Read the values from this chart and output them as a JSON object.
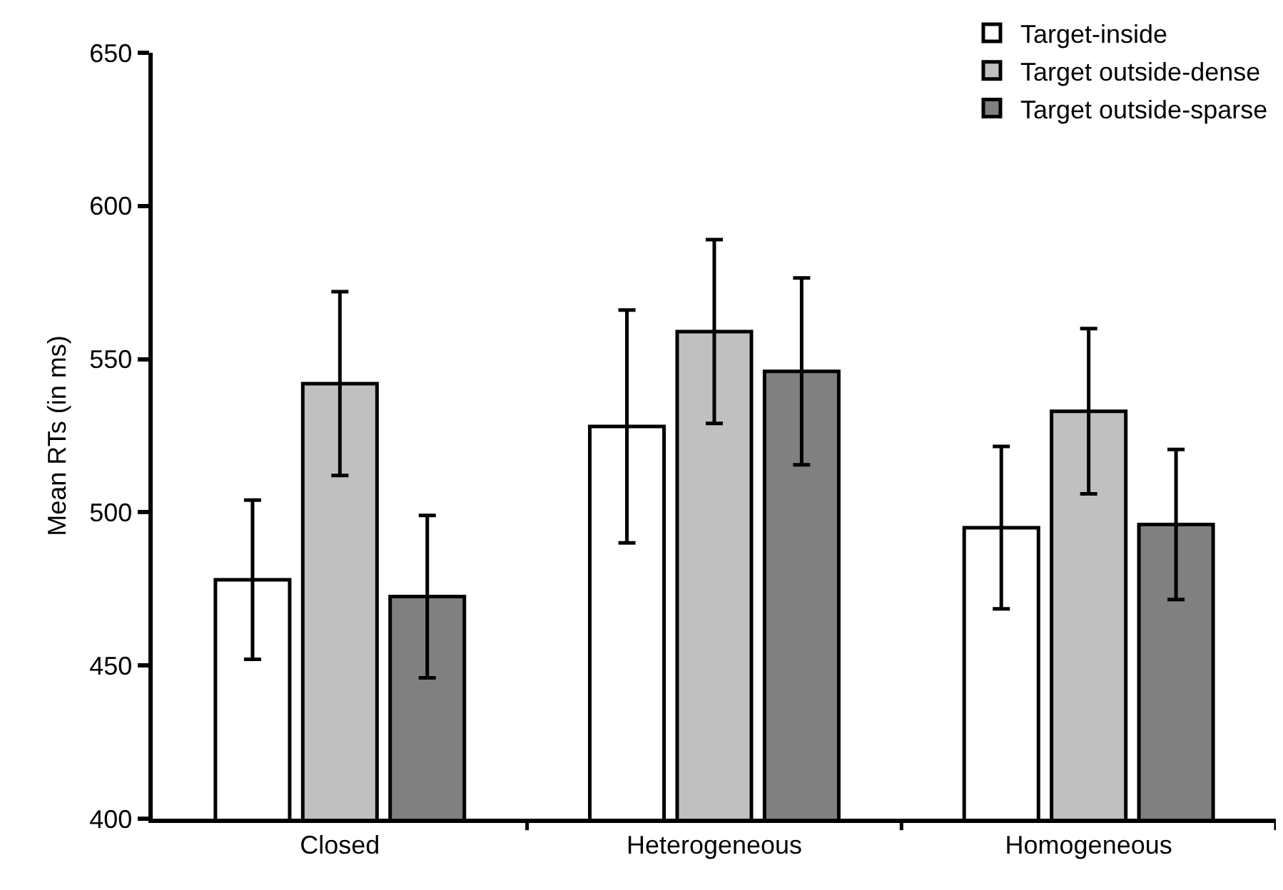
{
  "chart_data": {
    "type": "bar",
    "ylabel": "Mean RTs (in ms)",
    "categories": [
      "Closed",
      "Heterogeneous",
      "Homogeneous"
    ],
    "series": [
      {
        "name": "Target-inside",
        "color": "#ffffff",
        "values": [
          478,
          528,
          495
        ],
        "errors": [
          26,
          38,
          26.5
        ]
      },
      {
        "name": "Target outside-dense",
        "color": "#c0c0c0",
        "values": [
          542,
          559,
          533
        ],
        "errors": [
          30,
          30,
          27
        ]
      },
      {
        "name": "Target outside-sparse",
        "color": "#808080",
        "values": [
          472.5,
          546,
          496
        ],
        "errors": [
          26.5,
          30.5,
          24.5
        ]
      }
    ],
    "ylim": [
      400,
      650
    ],
    "yticks": [
      400,
      450,
      500,
      550,
      600,
      650
    ],
    "legend": "top right"
  }
}
